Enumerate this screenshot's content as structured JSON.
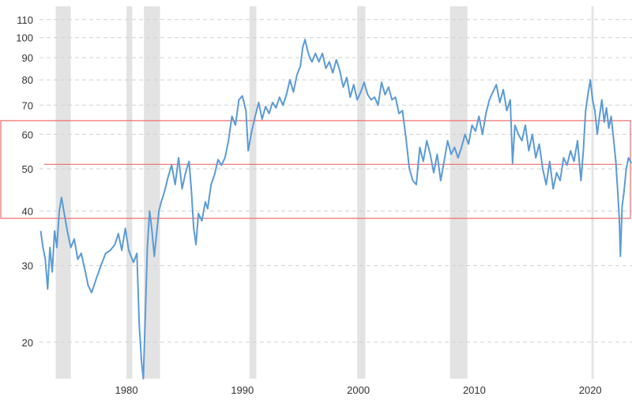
{
  "chart_data": {
    "type": "line",
    "title": "",
    "xlabel": "",
    "ylabel": "",
    "y_scale": "log",
    "ylim": [
      16.5,
      118
    ],
    "xlim": [
      1972.5,
      2023.6
    ],
    "grid": "horizontal-dashed",
    "y_ticks": [
      20,
      30,
      40,
      50,
      60,
      70,
      80,
      90,
      100,
      110
    ],
    "x_ticks": [
      1980,
      1990,
      2000,
      2010,
      2020
    ],
    "colors": {
      "line": "#5b9bd5",
      "recession": "#e3e3e3",
      "annotation": "#ee6b6b"
    },
    "recessions": [
      [
        1973.9,
        1975.2
      ],
      [
        1980.0,
        1980.5
      ],
      [
        1981.5,
        1982.9
      ],
      [
        1990.6,
        1991.2
      ],
      [
        1999.9,
        2000.6
      ],
      [
        2007.9,
        2009.4
      ],
      [
        2020.1,
        2020.3
      ]
    ],
    "annotations": {
      "band": [
        38.5,
        64.5
      ],
      "level": 51.2,
      "level_range": [
        1972.9,
        2022.7
      ]
    },
    "series": [
      {
        "points": [
          [
            1972.6,
            36.0
          ],
          [
            1972.8,
            33.0
          ],
          [
            1973.0,
            31.0
          ],
          [
            1973.2,
            26.5
          ],
          [
            1973.4,
            33.0
          ],
          [
            1973.6,
            29.0
          ],
          [
            1973.8,
            36.0
          ],
          [
            1974.0,
            33.0
          ],
          [
            1974.2,
            40.0
          ],
          [
            1974.4,
            43.0
          ],
          [
            1974.6,
            40.0
          ],
          [
            1974.9,
            36.0
          ],
          [
            1975.2,
            33.0
          ],
          [
            1975.5,
            34.5
          ],
          [
            1975.8,
            31.0
          ],
          [
            1976.1,
            32.0
          ],
          [
            1976.4,
            29.5
          ],
          [
            1976.7,
            27.0
          ],
          [
            1977.0,
            26.0
          ],
          [
            1977.4,
            28.0
          ],
          [
            1977.8,
            30.0
          ],
          [
            1978.2,
            32.0
          ],
          [
            1978.6,
            32.5
          ],
          [
            1979.0,
            33.5
          ],
          [
            1979.3,
            35.5
          ],
          [
            1979.6,
            32.5
          ],
          [
            1979.9,
            36.5
          ],
          [
            1980.2,
            32.5
          ],
          [
            1980.6,
            30.5
          ],
          [
            1980.9,
            32.0
          ],
          [
            1981.1,
            22.0
          ],
          [
            1981.3,
            18.0
          ],
          [
            1981.45,
            16.5
          ],
          [
            1981.6,
            22.0
          ],
          [
            1981.8,
            33.0
          ],
          [
            1982.0,
            40.0
          ],
          [
            1982.2,
            36.0
          ],
          [
            1982.4,
            31.5
          ],
          [
            1982.6,
            35.5
          ],
          [
            1982.8,
            40.0
          ],
          [
            1983.0,
            42.0
          ],
          [
            1983.3,
            44.5
          ],
          [
            1983.6,
            48.0
          ],
          [
            1983.9,
            51.0
          ],
          [
            1984.2,
            46.0
          ],
          [
            1984.5,
            53.0
          ],
          [
            1984.8,
            45.0
          ],
          [
            1985.1,
            49.0
          ],
          [
            1985.4,
            52.0
          ],
          [
            1985.6,
            44.5
          ],
          [
            1985.8,
            36.5
          ],
          [
            1986.0,
            33.5
          ],
          [
            1986.2,
            39.5
          ],
          [
            1986.5,
            38.0
          ],
          [
            1986.8,
            42.0
          ],
          [
            1987.0,
            40.5
          ],
          [
            1987.3,
            46.0
          ],
          [
            1987.6,
            48.5
          ],
          [
            1987.9,
            52.5
          ],
          [
            1988.2,
            51.0
          ],
          [
            1988.5,
            53.0
          ],
          [
            1988.8,
            58.0
          ],
          [
            1989.1,
            66.0
          ],
          [
            1989.4,
            63.0
          ],
          [
            1989.7,
            72.0
          ],
          [
            1990.0,
            73.5
          ],
          [
            1990.3,
            68.0
          ],
          [
            1990.5,
            55.0
          ],
          [
            1990.8,
            61.0
          ],
          [
            1991.1,
            66.0
          ],
          [
            1991.4,
            71.0
          ],
          [
            1991.7,
            65.0
          ],
          [
            1992.0,
            69.5
          ],
          [
            1992.3,
            67.0
          ],
          [
            1992.6,
            71.0
          ],
          [
            1992.9,
            69.0
          ],
          [
            1993.2,
            73.0
          ],
          [
            1993.5,
            70.0
          ],
          [
            1993.8,
            74.0
          ],
          [
            1994.1,
            80.0
          ],
          [
            1994.4,
            75.0
          ],
          [
            1994.7,
            82.0
          ],
          [
            1995.0,
            86.0
          ],
          [
            1995.2,
            95.0
          ],
          [
            1995.4,
            99.0
          ],
          [
            1995.6,
            94.0
          ],
          [
            1995.8,
            90.0
          ],
          [
            1996.0,
            88.0
          ],
          [
            1996.3,
            92.0
          ],
          [
            1996.6,
            88.0
          ],
          [
            1996.9,
            92.0
          ],
          [
            1997.2,
            85.0
          ],
          [
            1997.5,
            88.0
          ],
          [
            1997.8,
            83.0
          ],
          [
            1998.1,
            89.0
          ],
          [
            1998.4,
            84.0
          ],
          [
            1998.7,
            77.0
          ],
          [
            1999.0,
            81.0
          ],
          [
            1999.3,
            73.0
          ],
          [
            1999.6,
            78.0
          ],
          [
            1999.9,
            72.0
          ],
          [
            2000.2,
            75.0
          ],
          [
            2000.5,
            79.0
          ],
          [
            2000.8,
            74.0
          ],
          [
            2001.1,
            72.0
          ],
          [
            2001.4,
            73.0
          ],
          [
            2001.7,
            70.0
          ],
          [
            2002.0,
            79.0
          ],
          [
            2002.3,
            74.0
          ],
          [
            2002.6,
            77.0
          ],
          [
            2002.9,
            72.0
          ],
          [
            2003.2,
            73.0
          ],
          [
            2003.5,
            67.0
          ],
          [
            2003.8,
            68.0
          ],
          [
            2004.1,
            59.0
          ],
          [
            2004.4,
            50.0
          ],
          [
            2004.7,
            47.0
          ],
          [
            2005.0,
            46.0
          ],
          [
            2005.3,
            56.0
          ],
          [
            2005.6,
            52.0
          ],
          [
            2005.9,
            58.0
          ],
          [
            2006.2,
            54.0
          ],
          [
            2006.5,
            49.0
          ],
          [
            2006.8,
            54.0
          ],
          [
            2007.1,
            47.0
          ],
          [
            2007.4,
            52.0
          ],
          [
            2007.7,
            58.0
          ],
          [
            2008.0,
            54.0
          ],
          [
            2008.3,
            56.0
          ],
          [
            2008.6,
            53.0
          ],
          [
            2008.9,
            56.0
          ],
          [
            2009.2,
            60.0
          ],
          [
            2009.5,
            57.0
          ],
          [
            2009.8,
            63.0
          ],
          [
            2010.1,
            61.0
          ],
          [
            2010.4,
            66.0
          ],
          [
            2010.7,
            60.0
          ],
          [
            2011.0,
            67.0
          ],
          [
            2011.3,
            72.0
          ],
          [
            2011.6,
            75.0
          ],
          [
            2011.9,
            78.0
          ],
          [
            2012.2,
            71.0
          ],
          [
            2012.5,
            76.0
          ],
          [
            2012.8,
            68.0
          ],
          [
            2013.1,
            72.0
          ],
          [
            2013.3,
            51.5
          ],
          [
            2013.5,
            63.0
          ],
          [
            2013.8,
            60.0
          ],
          [
            2014.1,
            58.0
          ],
          [
            2014.4,
            63.0
          ],
          [
            2014.7,
            55.0
          ],
          [
            2015.0,
            60.0
          ],
          [
            2015.3,
            53.0
          ],
          [
            2015.6,
            57.0
          ],
          [
            2015.9,
            50.0
          ],
          [
            2016.2,
            46.0
          ],
          [
            2016.5,
            52.0
          ],
          [
            2016.8,
            45.0
          ],
          [
            2017.1,
            49.0
          ],
          [
            2017.4,
            47.0
          ],
          [
            2017.7,
            53.0
          ],
          [
            2018.0,
            51.0
          ],
          [
            2018.3,
            55.0
          ],
          [
            2018.6,
            52.0
          ],
          [
            2018.9,
            58.0
          ],
          [
            2019.2,
            47.0
          ],
          [
            2019.4,
            55.0
          ],
          [
            2019.6,
            68.0
          ],
          [
            2019.8,
            74.0
          ],
          [
            2020.0,
            80.0
          ],
          [
            2020.2,
            72.0
          ],
          [
            2020.4,
            68.0
          ],
          [
            2020.6,
            60.0
          ],
          [
            2020.8,
            66.0
          ],
          [
            2021.0,
            72.0
          ],
          [
            2021.2,
            64.0
          ],
          [
            2021.4,
            69.0
          ],
          [
            2021.6,
            62.0
          ],
          [
            2021.8,
            66.0
          ],
          [
            2022.0,
            59.0
          ],
          [
            2022.2,
            52.0
          ],
          [
            2022.35,
            45.0
          ],
          [
            2022.5,
            38.5
          ],
          [
            2022.6,
            31.5
          ],
          [
            2022.75,
            41.0
          ],
          [
            2022.9,
            44.0
          ],
          [
            2023.1,
            50.0
          ],
          [
            2023.3,
            53.0
          ],
          [
            2023.55,
            51.5
          ]
        ]
      }
    ]
  }
}
